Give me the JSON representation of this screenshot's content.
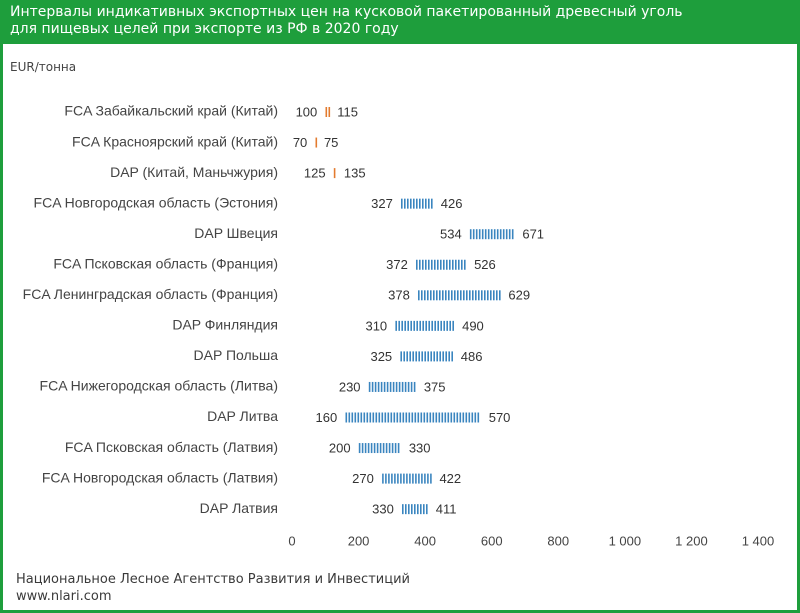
{
  "header": {
    "title": "Интервалы индикативных экспортных цен на кусковой пакетированный древесный уголь для пищевых целей при экспорте из РФ в 2020 году"
  },
  "colors": {
    "brand_green": "#1e9e3c",
    "china_series": "#e37b2f",
    "other_series": "#3a85bf"
  },
  "footer": {
    "organization": "Национальное Лесное Агентство Развития и Инвестиций",
    "website": "www.nlari.com"
  },
  "chart_data": {
    "type": "bar",
    "subtype": "range",
    "ylabel": "EUR/тонна",
    "xlim": [
      0,
      1400
    ],
    "x_ticks": [
      0,
      200,
      400,
      600,
      800,
      1000,
      1200,
      1400
    ],
    "x_tick_labels": [
      "0",
      "200",
      "400",
      "600",
      "800",
      "1 000",
      "1 200",
      "1 400"
    ],
    "grid": false,
    "categories": [
      "FCA Забайкальский край (Китай)",
      "FCA Красноярский край (Китай)",
      "DAP (Китай, Маньчжурия)",
      "FCA Новгородская область (Эстония)",
      "DAP Швеция",
      "FCA Псковская область (Франция)",
      "FCA Ленинградская область (Франция)",
      "DAP Финляндия",
      "DAP Польша",
      "FCA Нижегородская область (Литва)",
      "DAP Литва",
      "FCA Псковская область (Латвия)",
      "FCA Новгородская область (Латвия)",
      "DAP Латвия"
    ],
    "ranges": [
      {
        "min": 100,
        "max": 115,
        "color": "#e37b2f"
      },
      {
        "min": 70,
        "max": 75,
        "color": "#e37b2f"
      },
      {
        "min": 125,
        "max": 135,
        "color": "#e37b2f"
      },
      {
        "min": 327,
        "max": 426,
        "color": "#3a85bf"
      },
      {
        "min": 534,
        "max": 671,
        "color": "#3a85bf"
      },
      {
        "min": 372,
        "max": 526,
        "color": "#3a85bf"
      },
      {
        "min": 378,
        "max": 629,
        "color": "#3a85bf"
      },
      {
        "min": 310,
        "max": 490,
        "color": "#3a85bf"
      },
      {
        "min": 325,
        "max": 486,
        "color": "#3a85bf"
      },
      {
        "min": 230,
        "max": 375,
        "color": "#3a85bf"
      },
      {
        "min": 160,
        "max": 570,
        "color": "#3a85bf"
      },
      {
        "min": 200,
        "max": 330,
        "color": "#3a85bf"
      },
      {
        "min": 270,
        "max": 422,
        "color": "#3a85bf"
      },
      {
        "min": 330,
        "max": 411,
        "color": "#3a85bf"
      }
    ]
  }
}
